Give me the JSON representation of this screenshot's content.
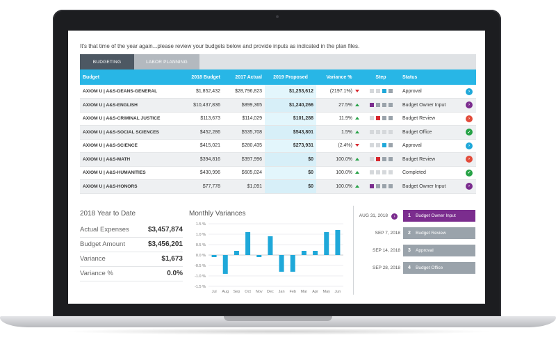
{
  "intro_text": "It's that time of the year again...please review your budgets below and provide inputs as indicated in the plan files.",
  "tabs": [
    {
      "label": "BUDGETING",
      "active": true
    },
    {
      "label": "LABOR PLANNING",
      "active": false
    }
  ],
  "table": {
    "headers": {
      "budget": "Budget",
      "b2018": "2018 Budget",
      "a2017": "2017 Actual",
      "p2019": "2019 Proposed",
      "variance": "Variance %",
      "step": "Step",
      "status": "Status"
    },
    "rows": [
      {
        "name": "AXIOM U | A&S-DEANS-GENERAL",
        "b2018": "$1,852,432",
        "a2017": "$28,796,823",
        "p2019": "$1,253,612",
        "variance": "(2197.1%)",
        "trend": "down",
        "steps": [
          "#d5d8db",
          "#d5d8db",
          "#1fa8d9",
          "#9aa3ab"
        ],
        "status": "Approval",
        "status_icon": "chevron-right-icon",
        "status_color": "#1fa8d9"
      },
      {
        "name": "AXIOM U | A&S-ENGLISH",
        "b2018": "$10,437,836",
        "a2017": "$899,365",
        "p2019": "$1,240,266",
        "variance": "27.5%",
        "trend": "up",
        "steps": [
          "#7b2d8e",
          "#9aa3ab",
          "#9aa3ab",
          "#9aa3ab"
        ],
        "status": "Budget Owner Input",
        "status_icon": "chevron-right-icon",
        "status_color": "#7b2d8e"
      },
      {
        "name": "AXIOM U | A&S-CRIMINAL JUSTICE",
        "b2018": "$113,673",
        "a2017": "$114,029",
        "p2019": "$101,288",
        "variance": "11.9%",
        "trend": "up",
        "steps": [
          "#d5d8db",
          "#d7282f",
          "#9aa3ab",
          "#9aa3ab"
        ],
        "status": "Budget Review",
        "status_icon": "chevron-right-icon",
        "status_color": "#e24b3a"
      },
      {
        "name": "AXIOM U | A&S-SOCIAL SCIENCES",
        "b2018": "$452,286",
        "a2017": "$535,708",
        "p2019": "$543,801",
        "variance": "1.5%",
        "trend": "up",
        "steps": [
          "#d5d8db",
          "#d5d8db",
          "#d5d8db",
          "#d5d8db"
        ],
        "status": "Budget Office",
        "status_icon": "check-icon",
        "status_color": "#26a246"
      },
      {
        "name": "AXIOM U | A&S-SCIENCE",
        "b2018": "$415,021",
        "a2017": "$280,435",
        "p2019": "$273,931",
        "variance": "(2.4%)",
        "trend": "down",
        "steps": [
          "#d5d8db",
          "#d5d8db",
          "#1fa8d9",
          "#9aa3ab"
        ],
        "status": "Approval",
        "status_icon": "chevron-right-icon",
        "status_color": "#1fa8d9"
      },
      {
        "name": "AXIOM U | A&S-MATH",
        "b2018": "$394,816",
        "a2017": "$397,996",
        "p2019": "$0",
        "variance": "100.0%",
        "trend": "up",
        "steps": [
          "#d5d8db",
          "#d7282f",
          "#9aa3ab",
          "#9aa3ab"
        ],
        "status": "Budget Review",
        "status_icon": "chevron-right-icon",
        "status_color": "#e24b3a"
      },
      {
        "name": "AXIOM U | A&S-HUMANITIES",
        "b2018": "$430,996",
        "a2017": "$605,024",
        "p2019": "$0",
        "variance": "100.0%",
        "trend": "up",
        "steps": [
          "#d5d8db",
          "#d5d8db",
          "#d5d8db",
          "#d5d8db"
        ],
        "status": "Completed",
        "status_icon": "check-icon",
        "status_color": "#26a246"
      },
      {
        "name": "AXIOM U | A&S-HONORS",
        "b2018": "$77,778",
        "a2017": "$1,091",
        "p2019": "$0",
        "variance": "100.0%",
        "trend": "up",
        "steps": [
          "#7b2d8e",
          "#9aa3ab",
          "#9aa3ab",
          "#9aa3ab"
        ],
        "status": "Budget Owner Input",
        "status_icon": "chevron-right-icon",
        "status_color": "#7b2d8e"
      }
    ]
  },
  "ytd": {
    "title": "2018 Year to Date",
    "items": [
      {
        "label": "Actual Expenses",
        "value": "$3,457,874"
      },
      {
        "label": "Budget Amount",
        "value": "$3,456,201"
      },
      {
        "label": "Variance",
        "value": "$1,673"
      },
      {
        "label": "Variance %",
        "value": "0.0%"
      }
    ]
  },
  "monthly": {
    "title": "Monthly Variances"
  },
  "chart_data": {
    "type": "bar",
    "title": "Monthly Variances",
    "categories": [
      "Jul",
      "Aug",
      "Sep",
      "Oct",
      "Nov",
      "Dec",
      "Jan",
      "Feb",
      "Mar",
      "Apr",
      "May",
      "Jun"
    ],
    "values": [
      -0.1,
      -0.9,
      0.2,
      1.1,
      -0.1,
      0.9,
      -0.8,
      -0.8,
      0.2,
      0.2,
      1.1,
      1.2
    ],
    "ylim": [
      -1.5,
      1.5
    ],
    "yticks": [
      "1.5 %",
      "1.0 %",
      "0.5 %",
      "0.0 %",
      "-0.5 %",
      "-1.0 %",
      "-1.5 %"
    ],
    "ytick_values": [
      1.5,
      1.0,
      0.5,
      0.0,
      -0.5,
      -1.0,
      -1.5
    ],
    "color": "#1fa8d9",
    "grid": true
  },
  "timeline": [
    {
      "date": "AUG 31, 2018",
      "num": "1",
      "label": "Budget Owner Input",
      "active": true
    },
    {
      "date": "SEP 7, 2018",
      "num": "2",
      "label": "Budget Review",
      "active": false
    },
    {
      "date": "SEP 14, 2018",
      "num": "3",
      "label": "Approval",
      "active": false
    },
    {
      "date": "SEP 28, 2018",
      "num": "4",
      "label": "Budget Office",
      "active": false
    }
  ]
}
